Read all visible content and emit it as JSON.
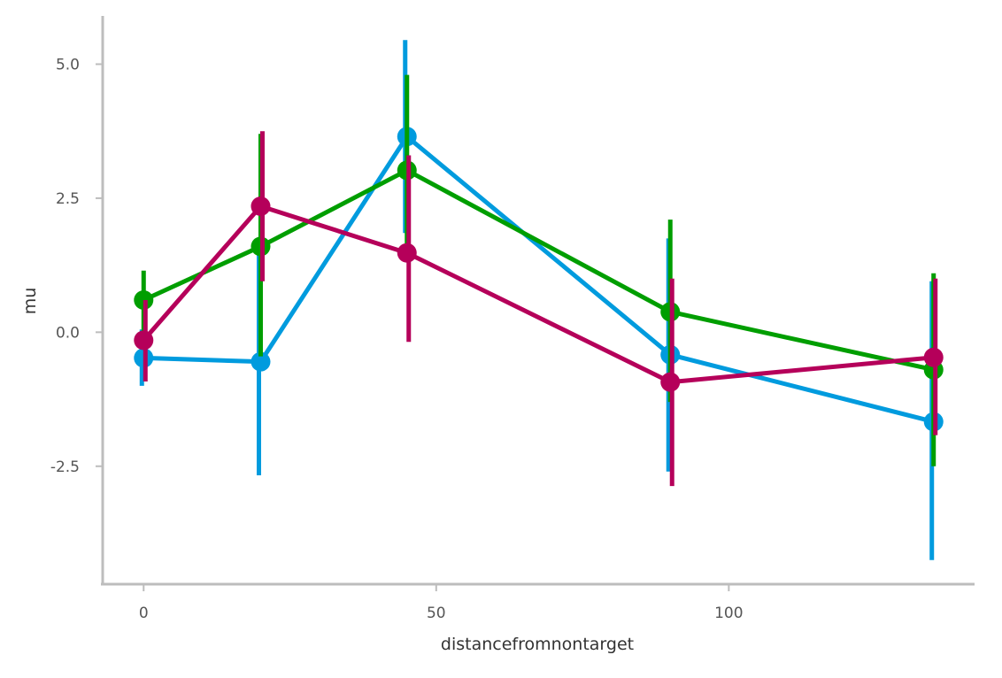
{
  "chart_data": {
    "type": "line",
    "title": "",
    "xlabel": "distancefromnontarget",
    "ylabel": "mu",
    "xlim": [
      -7,
      142
    ],
    "ylim": [
      -4.7,
      5.9
    ],
    "x_ticks": [
      0,
      50,
      100
    ],
    "x_tick_labels": [
      "0",
      "50",
      "100"
    ],
    "y_ticks": [
      5.0,
      2.5,
      0.0,
      -2.5
    ],
    "y_tick_labels": [
      "5.0",
      "2.5",
      "0.0",
      "-2.5"
    ],
    "grid": false,
    "legend": "none",
    "x": [
      0,
      20,
      45,
      90,
      135
    ],
    "series": [
      {
        "color": "#009bde",
        "values": [
          -0.48,
          -0.55,
          3.65,
          -0.42,
          -1.67
        ],
        "error_low": [
          -1.0,
          -2.67,
          1.85,
          -2.6,
          -4.25
        ],
        "error_high": [
          0.05,
          1.55,
          5.45,
          1.75,
          0.95
        ]
      },
      {
        "color": "#009e00",
        "values": [
          0.6,
          1.6,
          3.02,
          0.38,
          -0.7
        ],
        "error_low": [
          -0.2,
          -0.45,
          1.6,
          -1.3,
          -2.5
        ],
        "error_high": [
          1.15,
          3.7,
          4.8,
          2.1,
          1.1
        ]
      },
      {
        "color": "#b5005a",
        "values": [
          -0.15,
          2.35,
          1.48,
          -0.93,
          -0.47
        ],
        "error_low": [
          -0.92,
          0.95,
          -0.18,
          -2.87,
          -1.92
        ],
        "error_high": [
          0.6,
          3.75,
          3.3,
          1.0,
          1.0
        ]
      }
    ]
  }
}
